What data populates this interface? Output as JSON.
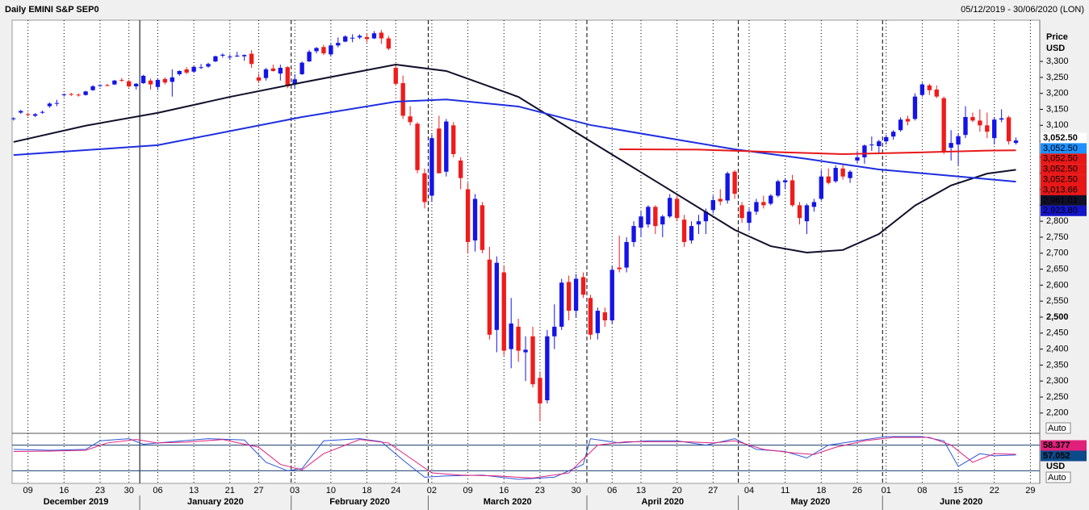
{
  "chart_data": {
    "type": "candlestick",
    "title": "Daily EMINI S&P SEP0",
    "date_range": "05/12/2019 - 30/06/2020 (LON)",
    "y_axis_title": [
      "Price",
      "USD"
    ],
    "auto_buttons": [
      "Auto",
      "Auto"
    ],
    "up_color": "#1414e6",
    "down_color": "#ee1c1c",
    "candles": [
      [
        3120,
        3125,
        3115,
        3122
      ],
      [
        3140,
        3148,
        3136,
        3145
      ],
      [
        3135,
        3140,
        3128,
        3133
      ],
      [
        3130,
        3138,
        3126,
        3135
      ],
      [
        3140,
        3146,
        3136,
        3142
      ],
      [
        3160,
        3172,
        3155,
        3168
      ],
      [
        3168,
        3180,
        3160,
        3170
      ],
      [
        3195,
        3200,
        3190,
        3197
      ],
      [
        3198,
        3202,
        3192,
        3196
      ],
      [
        3196,
        3200,
        3190,
        3194
      ],
      [
        3195,
        3208,
        3193,
        3206
      ],
      [
        3210,
        3226,
        3208,
        3222
      ],
      [
        3224,
        3228,
        3220,
        3226
      ],
      [
        3226,
        3230,
        3222,
        3224
      ],
      [
        3228,
        3242,
        3226,
        3240
      ],
      [
        3242,
        3248,
        3236,
        3240
      ],
      [
        3238,
        3242,
        3218,
        3222
      ],
      [
        3222,
        3232,
        3212,
        3230
      ],
      [
        3232,
        3258,
        3230,
        3255
      ],
      [
        3240,
        3246,
        3212,
        3228
      ],
      [
        3220,
        3248,
        3210,
        3242
      ],
      [
        3245,
        3250,
        3228,
        3234
      ],
      [
        3236,
        3275,
        3190,
        3250
      ],
      [
        3260,
        3272,
        3255,
        3270
      ],
      [
        3275,
        3282,
        3260,
        3265
      ],
      [
        3268,
        3285,
        3264,
        3283
      ],
      [
        3282,
        3292,
        3276,
        3282
      ],
      [
        3284,
        3296,
        3280,
        3292
      ],
      [
        3300,
        3318,
        3298,
        3316
      ],
      [
        3318,
        3325,
        3312,
        3321
      ],
      [
        3315,
        3322,
        3305,
        3315
      ],
      [
        3318,
        3330,
        3314,
        3318
      ],
      [
        3316,
        3322,
        3302,
        3320
      ],
      [
        3324,
        3335,
        3280,
        3292
      ],
      [
        3250,
        3262,
        3232,
        3240
      ],
      [
        3248,
        3280,
        3240,
        3275
      ],
      [
        3278,
        3290,
        3268,
        3270
      ],
      [
        3262,
        3290,
        3240,
        3280
      ],
      [
        3282,
        3285,
        3216,
        3222
      ],
      [
        3230,
        3260,
        3215,
        3244
      ],
      [
        3260,
        3300,
        3258,
        3296
      ],
      [
        3300,
        3336,
        3298,
        3330
      ],
      [
        3332,
        3345,
        3325,
        3342
      ],
      [
        3345,
        3352,
        3320,
        3325
      ],
      [
        3322,
        3355,
        3315,
        3350
      ],
      [
        3350,
        3375,
        3344,
        3358
      ],
      [
        3362,
        3382,
        3360,
        3378
      ],
      [
        3372,
        3385,
        3360,
        3374
      ],
      [
        3375,
        3385,
        3370,
        3380
      ],
      [
        3376,
        3388,
        3360,
        3370
      ],
      [
        3372,
        3395,
        3370,
        3388
      ],
      [
        3390,
        3398,
        3355,
        3372
      ],
      [
        3372,
        3380,
        3335,
        3340
      ],
      [
        3280,
        3290,
        3225,
        3230
      ],
      [
        3232,
        3256,
        3120,
        3130
      ],
      [
        3128,
        3160,
        3100,
        3110
      ],
      [
        3105,
        3110,
        2950,
        2960
      ],
      [
        2950,
        2965,
        2840,
        2860
      ],
      [
        2880,
        3072,
        2860,
        3060
      ],
      [
        3090,
        3130,
        2950,
        2950
      ],
      [
        2955,
        3120,
        2940,
        3112
      ],
      [
        3100,
        3110,
        3000,
        3010
      ],
      [
        2990,
        3000,
        2900,
        2935
      ],
      [
        2900,
        2920,
        2700,
        2735
      ],
      [
        2740,
        2885,
        2705,
        2870
      ],
      [
        2850,
        2860,
        2700,
        2710
      ],
      [
        2680,
        2720,
        2430,
        2445
      ],
      [
        2460,
        2690,
        2390,
        2670
      ],
      [
        2640,
        2660,
        2380,
        2395
      ],
      [
        2400,
        2560,
        2340,
        2480
      ],
      [
        2470,
        2495,
        2360,
        2395
      ],
      [
        2390,
        2440,
        2300,
        2398
      ],
      [
        2440,
        2470,
        2280,
        2290
      ],
      [
        2310,
        2330,
        2174,
        2230
      ],
      [
        2240,
        2460,
        2230,
        2440
      ],
      [
        2440,
        2540,
        2400,
        2470
      ],
      [
        2470,
        2620,
        2460,
        2608
      ],
      [
        2610,
        2630,
        2490,
        2520
      ],
      [
        2520,
        2635,
        2500,
        2620
      ],
      [
        2625,
        2640,
        2560,
        2570
      ],
      [
        2560,
        2570,
        2430,
        2445
      ],
      [
        2450,
        2530,
        2430,
        2520
      ],
      [
        2515,
        2530,
        2470,
        2490
      ],
      [
        2490,
        2660,
        2480,
        2648
      ],
      [
        2655,
        2755,
        2640,
        2650
      ],
      [
        2655,
        2750,
        2640,
        2735
      ],
      [
        2735,
        2800,
        2720,
        2785
      ],
      [
        2780,
        2830,
        2750,
        2815
      ],
      [
        2790,
        2850,
        2780,
        2845
      ],
      [
        2845,
        2850,
        2760,
        2785
      ],
      [
        2790,
        2820,
        2750,
        2815
      ],
      [
        2815,
        2885,
        2810,
        2873
      ],
      [
        2870,
        2880,
        2800,
        2810
      ],
      [
        2805,
        2820,
        2720,
        2735
      ],
      [
        2740,
        2800,
        2730,
        2785
      ],
      [
        2790,
        2820,
        2760,
        2800
      ],
      [
        2800,
        2840,
        2760,
        2830
      ],
      [
        2835,
        2880,
        2825,
        2866
      ],
      [
        2870,
        2900,
        2850,
        2862
      ],
      [
        2865,
        2955,
        2855,
        2950
      ],
      [
        2955,
        2960,
        2870,
        2886
      ],
      [
        2850,
        2860,
        2795,
        2810
      ],
      [
        2795,
        2840,
        2770,
        2830
      ],
      [
        2830,
        2870,
        2820,
        2860
      ],
      [
        2860,
        2880,
        2840,
        2850
      ],
      [
        2855,
        2885,
        2850,
        2880
      ],
      [
        2880,
        2930,
        2875,
        2925
      ],
      [
        2922,
        2935,
        2900,
        2928
      ],
      [
        2928,
        2945,
        2845,
        2850
      ],
      [
        2850,
        2860,
        2790,
        2810
      ],
      [
        2800,
        2855,
        2760,
        2850
      ],
      [
        2845,
        2870,
        2830,
        2860
      ],
      [
        2870,
        2960,
        2865,
        2940
      ],
      [
        2940,
        2965,
        2915,
        2920
      ],
      [
        2925,
        2975,
        2920,
        2967
      ],
      [
        2965,
        2980,
        2930,
        2940
      ],
      [
        2935,
        2960,
        2920,
        2955
      ],
      [
        2990,
        3020,
        2980,
        3000
      ],
      [
        3000,
        3040,
        2980,
        3037
      ],
      [
        3040,
        3065,
        3020,
        3040
      ],
      [
        3035,
        3055,
        3010,
        3050
      ],
      [
        3050,
        3070,
        3040,
        3063
      ],
      [
        3065,
        3085,
        3055,
        3080
      ],
      [
        3085,
        3125,
        3080,
        3118
      ],
      [
        3120,
        3130,
        3100,
        3112
      ],
      [
        3120,
        3200,
        3115,
        3190
      ],
      [
        3195,
        3233,
        3190,
        3228
      ],
      [
        3225,
        3230,
        3195,
        3210
      ],
      [
        3212,
        3225,
        3185,
        3190
      ],
      [
        3185,
        3190,
        3010,
        3017
      ],
      [
        3030,
        3085,
        2990,
        3045
      ],
      [
        3040,
        3075,
        2975,
        3066
      ],
      [
        3070,
        3160,
        3060,
        3126
      ],
      [
        3126,
        3140,
        3110,
        3115
      ],
      [
        3115,
        3150,
        3080,
        3100
      ],
      [
        3100,
        3140,
        3060,
        3080
      ],
      [
        3060,
        3125,
        3040,
        3118
      ],
      [
        3118,
        3150,
        3110,
        3122
      ],
      [
        3125,
        3130,
        3040,
        3050
      ],
      [
        3045,
        3062,
        3040,
        3052.5
      ]
    ],
    "lines": [
      {
        "color": "#10102a",
        "x": [
          0,
          10,
          20,
          30,
          40,
          53,
          60,
          70,
          80,
          90,
          100,
          105,
          110,
          115,
          120,
          125,
          130,
          135,
          139
        ],
        "values": [
          3048,
          3099,
          3139,
          3189,
          3234,
          3290,
          3270,
          3189,
          3050,
          2912,
          2773,
          2722,
          2702,
          2710,
          2760,
          2849,
          2912,
          2949,
          2961.01
        ]
      },
      {
        "color": "#1e2ee0",
        "x": [
          0,
          20,
          40,
          53,
          60,
          70,
          80,
          90,
          100,
          110,
          120,
          130,
          139
        ],
        "values": [
          3007,
          3038,
          3126,
          3174,
          3181,
          3159,
          3101,
          3063,
          3025,
          2995,
          2962,
          2942,
          2923.8
        ]
      },
      {
        "color": "#e81818",
        "x": [
          84,
          95,
          105,
          115,
          125,
          135,
          139
        ],
        "values": [
          3025,
          3024,
          3017,
          3010,
          3015,
          3021,
          3022
        ]
      }
    ],
    "xlim": [
      -0.2,
      142.3
    ],
    "ylim": [
      2139,
      3429
    ],
    "yticks": [
      {
        "value": 2200,
        "label": "2,200"
      },
      {
        "value": 2250,
        "label": "2,250"
      },
      {
        "value": 2300,
        "label": "2,300"
      },
      {
        "value": 2350,
        "label": "2,350"
      },
      {
        "value": 2400,
        "label": "2,400"
      },
      {
        "value": 2450,
        "label": "2,450"
      },
      {
        "value": 2500,
        "label": "2,500"
      },
      {
        "value": 2550,
        "label": "2,550"
      },
      {
        "value": 2600,
        "label": "2,600"
      },
      {
        "value": 2650,
        "label": "2,650"
      },
      {
        "value": 2700,
        "label": "2,700"
      },
      {
        "value": 2750,
        "label": "2,750"
      },
      {
        "value": 2800,
        "label": "2,800"
      },
      {
        "value": 2850,
        "label": "2,850"
      },
      {
        "value": 2900,
        "label": "2,900"
      },
      {
        "value": 2950,
        "label": "2,950"
      },
      {
        "value": 3000,
        "label": "3,000"
      },
      {
        "value": 3050,
        "label": "3,050"
      },
      {
        "value": 3100,
        "label": "3,100"
      },
      {
        "value": 3150,
        "label": "3,150"
      },
      {
        "value": 3200,
        "label": "3,200"
      },
      {
        "value": 3250,
        "label": "3,250"
      },
      {
        "value": 3300,
        "label": "3,300"
      }
    ],
    "xticks": [
      {
        "value": 2,
        "label": "09"
      },
      {
        "value": 7,
        "label": "16"
      },
      {
        "value": 12,
        "label": "23"
      },
      {
        "value": 16,
        "label": "30"
      },
      {
        "value": 20,
        "label": "06"
      },
      {
        "value": 25,
        "label": "13"
      },
      {
        "value": 30,
        "label": "21"
      },
      {
        "value": 34,
        "label": "27"
      },
      {
        "value": 39,
        "label": "03"
      },
      {
        "value": 44,
        "label": "10"
      },
      {
        "value": 49,
        "label": "18"
      },
      {
        "value": 53,
        "label": "24"
      },
      {
        "value": 58,
        "label": "02"
      },
      {
        "value": 63,
        "label": "09"
      },
      {
        "value": 68,
        "label": "16"
      },
      {
        "value": 73,
        "label": "23"
      },
      {
        "value": 78,
        "label": "30"
      },
      {
        "value": 83,
        "label": "06"
      },
      {
        "value": 87,
        "label": "13"
      },
      {
        "value": 92,
        "label": "20"
      },
      {
        "value": 97,
        "label": "27"
      },
      {
        "value": 102,
        "label": "04"
      },
      {
        "value": 107,
        "label": "11"
      },
      {
        "value": 112,
        "label": "18"
      },
      {
        "value": 117,
        "label": "26"
      },
      {
        "value": 121,
        "label": "01"
      },
      {
        "value": 126,
        "label": "08"
      },
      {
        "value": 131,
        "label": "15"
      },
      {
        "value": 136,
        "label": "22"
      },
      {
        "value": 141,
        "label": "29"
      }
    ],
    "months": [
      {
        "label": "December 2019",
        "start": -0.2
      },
      {
        "label": "January 2020",
        "start": 17.5
      },
      {
        "label": "February 2020",
        "start": 38.5
      },
      {
        "label": "March 2020",
        "start": 57.5
      },
      {
        "label": "April 2020",
        "start": 79.5
      },
      {
        "label": "May 2020",
        "start": 100.5
      },
      {
        "label": "June 2020",
        "start": 120.5
      }
    ],
    "price_labels": [
      {
        "label": "3,052.50",
        "bg": "#ffffff",
        "fg": "#e81818"
      },
      {
        "label": "3,052.50",
        "bg": "#1e90ff",
        "fg": "#ffffff"
      },
      {
        "label": "3,052.50",
        "bg": "#e81818",
        "fg": "#ffffff"
      },
      {
        "label": "3,052.50",
        "bg": "#e81818",
        "fg": "#ffffff"
      },
      {
        "label": "3,052.50",
        "bg": "#e81818",
        "fg": "#ffffff"
      },
      {
        "label": "3,013.66",
        "bg": "#e81818",
        "fg": "#ffffff"
      },
      {
        "label": "2,961.01",
        "bg": "#10102a",
        "fg": "#ffffff"
      },
      {
        "label": "2,923.80",
        "bg": "#1414c8",
        "fg": "#1414c8"
      }
    ],
    "stochastic": {
      "ylim": [
        -9.4,
        107.5
      ],
      "levels": [
        80,
        20
      ],
      "series": [
        {
          "color": "#2a55d8",
          "x": [
            0,
            5,
            10,
            12,
            16,
            18,
            22,
            27,
            32,
            35,
            38,
            40,
            43,
            48,
            51,
            54,
            57,
            60,
            65,
            70,
            75,
            79,
            80,
            84,
            88,
            92,
            96,
            100,
            103,
            107,
            110,
            113,
            117,
            121,
            126,
            129,
            131,
            134,
            136,
            139
          ],
          "values": [
            70,
            68,
            70,
            90,
            95,
            82,
            88,
            95,
            92,
            40,
            20,
            25,
            90,
            95,
            88,
            45,
            5,
            8,
            10,
            0,
            5,
            35,
            95,
            85,
            90,
            90,
            80,
            95,
            70,
            65,
            50,
            80,
            90,
            100,
            100,
            90,
            30,
            60,
            55,
            57.052
          ]
        },
        {
          "color": "#e0207a",
          "x": [
            0,
            5,
            10,
            13,
            17,
            20,
            24,
            29,
            34,
            37,
            40,
            43,
            48,
            52,
            55,
            58,
            62,
            67,
            72,
            77,
            81,
            85,
            89,
            93,
            97,
            100,
            104,
            108,
            111,
            114,
            118,
            122,
            127,
            130,
            133,
            136,
            139
          ],
          "values": [
            65,
            66,
            68,
            85,
            93,
            85,
            87,
            93,
            75,
            35,
            22,
            60,
            93,
            85,
            50,
            15,
            10,
            8,
            3,
            15,
            80,
            88,
            88,
            88,
            85,
            90,
            70,
            62,
            58,
            75,
            90,
            98,
            98,
            80,
            40,
            60,
            58.377
          ]
        }
      ],
      "labels": [
        {
          "label": "58.377",
          "bg": "#e0207a",
          "fg": "#ffffff"
        },
        {
          "label": "57.052",
          "bg": "#0d4a8a",
          "fg": "#ffffff"
        }
      ],
      "unit": "USD"
    }
  }
}
